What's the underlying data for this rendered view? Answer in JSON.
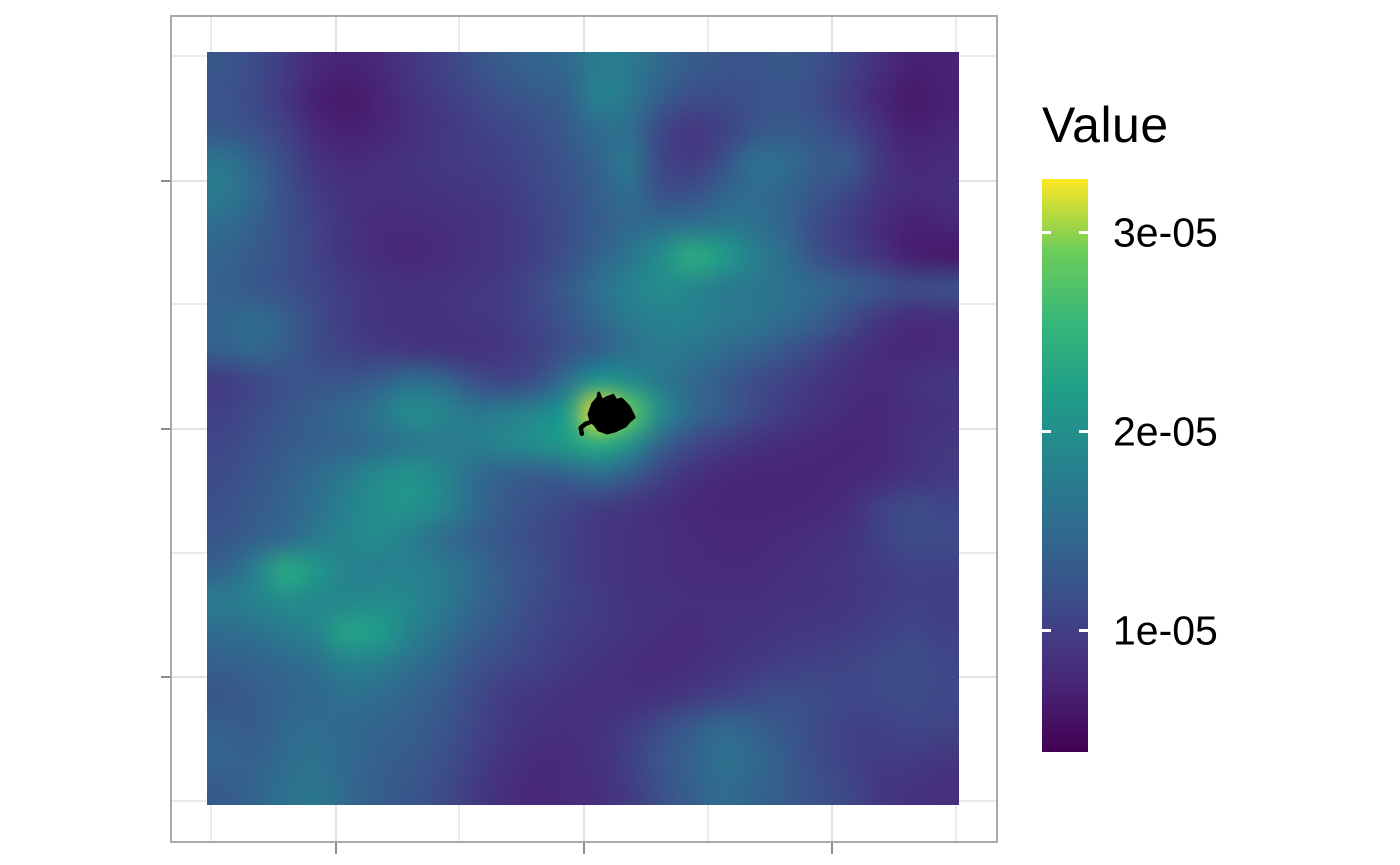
{
  "chart_data": {
    "type": "heatmap",
    "title": "",
    "description": "Smoothed kernel-density / utilization-distribution raster (viridis colormap) with a black GPS track cluster overlaid at the density peak; square panel with major and minor gridlines, axis ticks but no axis text",
    "panel": {
      "background": "#ffffff",
      "border_color": "#a9a9a9",
      "gridline_major_color": "#e2e2e2",
      "gridline_minor_color": "#ebebeb",
      "tick_color": "#8c8c8c"
    },
    "axes": {
      "x_label": "",
      "y_label": "",
      "tick_labels_visible": false,
      "major_frac": [
        0.1987,
        0.4995,
        0.8007
      ],
      "minor_frac": [
        0.0477,
        0.3489,
        0.6501,
        0.9513
      ]
    },
    "legend": {
      "title": "Value",
      "position": "right",
      "colormap": "viridis",
      "limits": [
        3.9e-06,
        3.27e-05
      ],
      "ticks": [
        {
          "value": 3e-05,
          "label": "3e-05"
        },
        {
          "value": 2e-05,
          "label": "2e-05"
        },
        {
          "value": 1e-05,
          "label": "1e-05"
        }
      ],
      "bar_tick_color": "#ffffff"
    },
    "viridis_stops": [
      [
        0.0,
        "#440154"
      ],
      [
        0.125,
        "#482878"
      ],
      [
        0.25,
        "#3e4a89"
      ],
      [
        0.375,
        "#31688e"
      ],
      [
        0.5,
        "#26828e"
      ],
      [
        0.625,
        "#1f9e89"
      ],
      [
        0.75,
        "#35b779"
      ],
      [
        0.875,
        "#6dcd59"
      ],
      [
        1.0,
        "#fde725"
      ]
    ],
    "grid": {
      "note": "24x24 field of normalized color-scale fractions t (0=darkest viridis, 1=yellow peak); value = limits[0] + t*(limits[1]-limits[0])",
      "rows": 24,
      "cols": 24,
      "values": [
        [
          0.3,
          0.26,
          0.2,
          0.13,
          0.11,
          0.13,
          0.18,
          0.22,
          0.28,
          0.33,
          0.36,
          0.38,
          0.48,
          0.46,
          0.38,
          0.32,
          0.3,
          0.29,
          0.31,
          0.28,
          0.22,
          0.15,
          0.1,
          0.11
        ],
        [
          0.29,
          0.25,
          0.18,
          0.1,
          0.08,
          0.11,
          0.16,
          0.2,
          0.24,
          0.28,
          0.31,
          0.34,
          0.5,
          0.44,
          0.33,
          0.26,
          0.26,
          0.28,
          0.3,
          0.26,
          0.19,
          0.12,
          0.08,
          0.1
        ],
        [
          0.31,
          0.28,
          0.22,
          0.13,
          0.1,
          0.12,
          0.15,
          0.18,
          0.21,
          0.24,
          0.27,
          0.32,
          0.4,
          0.4,
          0.24,
          0.18,
          0.22,
          0.3,
          0.32,
          0.3,
          0.24,
          0.16,
          0.1,
          0.12
        ],
        [
          0.44,
          0.36,
          0.26,
          0.17,
          0.14,
          0.15,
          0.17,
          0.19,
          0.2,
          0.22,
          0.25,
          0.3,
          0.36,
          0.45,
          0.24,
          0.2,
          0.28,
          0.42,
          0.4,
          0.33,
          0.32,
          0.18,
          0.13,
          0.14
        ],
        [
          0.46,
          0.38,
          0.28,
          0.2,
          0.16,
          0.15,
          0.16,
          0.17,
          0.18,
          0.2,
          0.24,
          0.28,
          0.34,
          0.4,
          0.28,
          0.28,
          0.36,
          0.4,
          0.36,
          0.3,
          0.24,
          0.17,
          0.14,
          0.15
        ],
        [
          0.4,
          0.34,
          0.28,
          0.22,
          0.17,
          0.14,
          0.14,
          0.15,
          0.16,
          0.18,
          0.22,
          0.27,
          0.33,
          0.38,
          0.4,
          0.42,
          0.44,
          0.42,
          0.36,
          0.26,
          0.2,
          0.14,
          0.1,
          0.12
        ],
        [
          0.36,
          0.32,
          0.28,
          0.22,
          0.17,
          0.14,
          0.13,
          0.14,
          0.16,
          0.18,
          0.22,
          0.28,
          0.36,
          0.44,
          0.55,
          0.7,
          0.62,
          0.48,
          0.4,
          0.28,
          0.22,
          0.16,
          0.1,
          0.08
        ],
        [
          0.34,
          0.31,
          0.28,
          0.24,
          0.2,
          0.17,
          0.16,
          0.17,
          0.18,
          0.2,
          0.25,
          0.32,
          0.42,
          0.5,
          0.55,
          0.52,
          0.46,
          0.44,
          0.42,
          0.38,
          0.34,
          0.3,
          0.26,
          0.28
        ],
        [
          0.36,
          0.4,
          0.34,
          0.26,
          0.2,
          0.17,
          0.16,
          0.17,
          0.18,
          0.2,
          0.24,
          0.3,
          0.38,
          0.46,
          0.5,
          0.5,
          0.46,
          0.44,
          0.4,
          0.34,
          0.26,
          0.18,
          0.14,
          0.15
        ],
        [
          0.34,
          0.38,
          0.33,
          0.26,
          0.22,
          0.2,
          0.18,
          0.17,
          0.16,
          0.18,
          0.22,
          0.28,
          0.34,
          0.42,
          0.46,
          0.44,
          0.4,
          0.36,
          0.3,
          0.24,
          0.18,
          0.14,
          0.13,
          0.14
        ],
        [
          0.2,
          0.24,
          0.28,
          0.3,
          0.3,
          0.34,
          0.42,
          0.38,
          0.28,
          0.24,
          0.28,
          0.42,
          0.6,
          0.55,
          0.45,
          0.38,
          0.32,
          0.26,
          0.22,
          0.18,
          0.15,
          0.14,
          0.16,
          0.18
        ],
        [
          0.22,
          0.26,
          0.3,
          0.34,
          0.38,
          0.45,
          0.55,
          0.52,
          0.45,
          0.48,
          0.52,
          0.62,
          1.0,
          0.85,
          0.55,
          0.38,
          0.32,
          0.25,
          0.2,
          0.16,
          0.14,
          0.13,
          0.15,
          0.17
        ],
        [
          0.24,
          0.28,
          0.32,
          0.34,
          0.36,
          0.4,
          0.44,
          0.46,
          0.48,
          0.52,
          0.56,
          0.62,
          0.7,
          0.58,
          0.35,
          0.25,
          0.2,
          0.16,
          0.14,
          0.13,
          0.12,
          0.13,
          0.16,
          0.18
        ],
        [
          0.26,
          0.3,
          0.34,
          0.4,
          0.46,
          0.54,
          0.58,
          0.52,
          0.4,
          0.34,
          0.32,
          0.34,
          0.4,
          0.32,
          0.22,
          0.16,
          0.13,
          0.12,
          0.12,
          0.12,
          0.13,
          0.14,
          0.17,
          0.19
        ],
        [
          0.28,
          0.32,
          0.36,
          0.42,
          0.5,
          0.56,
          0.58,
          0.52,
          0.4,
          0.32,
          0.28,
          0.24,
          0.2,
          0.18,
          0.15,
          0.13,
          0.12,
          0.12,
          0.12,
          0.13,
          0.15,
          0.22,
          0.26,
          0.24
        ],
        [
          0.3,
          0.34,
          0.38,
          0.46,
          0.52,
          0.54,
          0.48,
          0.4,
          0.34,
          0.3,
          0.26,
          0.22,
          0.18,
          0.16,
          0.15,
          0.14,
          0.13,
          0.13,
          0.14,
          0.15,
          0.17,
          0.22,
          0.26,
          0.25
        ],
        [
          0.36,
          0.48,
          0.68,
          0.6,
          0.5,
          0.48,
          0.5,
          0.46,
          0.4,
          0.32,
          0.28,
          0.22,
          0.18,
          0.16,
          0.15,
          0.14,
          0.14,
          0.14,
          0.15,
          0.16,
          0.18,
          0.2,
          0.22,
          0.22
        ],
        [
          0.46,
          0.5,
          0.55,
          0.52,
          0.52,
          0.55,
          0.52,
          0.46,
          0.38,
          0.32,
          0.26,
          0.22,
          0.2,
          0.17,
          0.16,
          0.15,
          0.15,
          0.15,
          0.16,
          0.17,
          0.18,
          0.2,
          0.22,
          0.21
        ],
        [
          0.4,
          0.42,
          0.46,
          0.52,
          0.65,
          0.62,
          0.5,
          0.42,
          0.34,
          0.29,
          0.24,
          0.21,
          0.19,
          0.17,
          0.15,
          0.14,
          0.16,
          0.17,
          0.18,
          0.19,
          0.2,
          0.22,
          0.24,
          0.22
        ],
        [
          0.34,
          0.36,
          0.38,
          0.42,
          0.5,
          0.48,
          0.42,
          0.36,
          0.29,
          0.25,
          0.22,
          0.19,
          0.17,
          0.15,
          0.14,
          0.15,
          0.17,
          0.19,
          0.21,
          0.22,
          0.23,
          0.25,
          0.27,
          0.24
        ],
        [
          0.3,
          0.33,
          0.36,
          0.38,
          0.42,
          0.4,
          0.36,
          0.32,
          0.26,
          0.2,
          0.18,
          0.16,
          0.15,
          0.15,
          0.16,
          0.19,
          0.22,
          0.25,
          0.27,
          0.26,
          0.24,
          0.25,
          0.26,
          0.24
        ],
        [
          0.34,
          0.32,
          0.38,
          0.4,
          0.38,
          0.36,
          0.34,
          0.3,
          0.24,
          0.19,
          0.16,
          0.15,
          0.16,
          0.2,
          0.26,
          0.32,
          0.38,
          0.34,
          0.3,
          0.26,
          0.22,
          0.22,
          0.24,
          0.23
        ],
        [
          0.36,
          0.34,
          0.4,
          0.42,
          0.38,
          0.34,
          0.32,
          0.28,
          0.22,
          0.17,
          0.14,
          0.14,
          0.16,
          0.22,
          0.3,
          0.36,
          0.42,
          0.38,
          0.32,
          0.26,
          0.22,
          0.2,
          0.2,
          0.18
        ],
        [
          0.32,
          0.36,
          0.42,
          0.44,
          0.38,
          0.33,
          0.3,
          0.26,
          0.2,
          0.15,
          0.13,
          0.14,
          0.15,
          0.2,
          0.28,
          0.34,
          0.4,
          0.36,
          0.32,
          0.28,
          0.24,
          0.18,
          0.17,
          0.15
        ]
      ]
    },
    "overlay": {
      "name": "track-point-cluster",
      "color": "#000000",
      "center_frac": [
        0.532,
        0.482
      ],
      "polygon_frac": [
        [
          0.508,
          0.481
        ],
        [
          0.513,
          0.467
        ],
        [
          0.52,
          0.459
        ],
        [
          0.521,
          0.453
        ],
        [
          0.525,
          0.463
        ],
        [
          0.532,
          0.459
        ],
        [
          0.54,
          0.456
        ],
        [
          0.544,
          0.463
        ],
        [
          0.551,
          0.461
        ],
        [
          0.561,
          0.471
        ],
        [
          0.568,
          0.485
        ],
        [
          0.562,
          0.49
        ],
        [
          0.556,
          0.497
        ],
        [
          0.543,
          0.503
        ],
        [
          0.532,
          0.506
        ],
        [
          0.521,
          0.502
        ],
        [
          0.516,
          0.495
        ],
        [
          0.511,
          0.491
        ]
      ],
      "tail_frac": [
        [
          0.511,
          0.491
        ],
        [
          0.503,
          0.494
        ],
        [
          0.497,
          0.499
        ],
        [
          0.4985,
          0.507
        ]
      ]
    }
  }
}
